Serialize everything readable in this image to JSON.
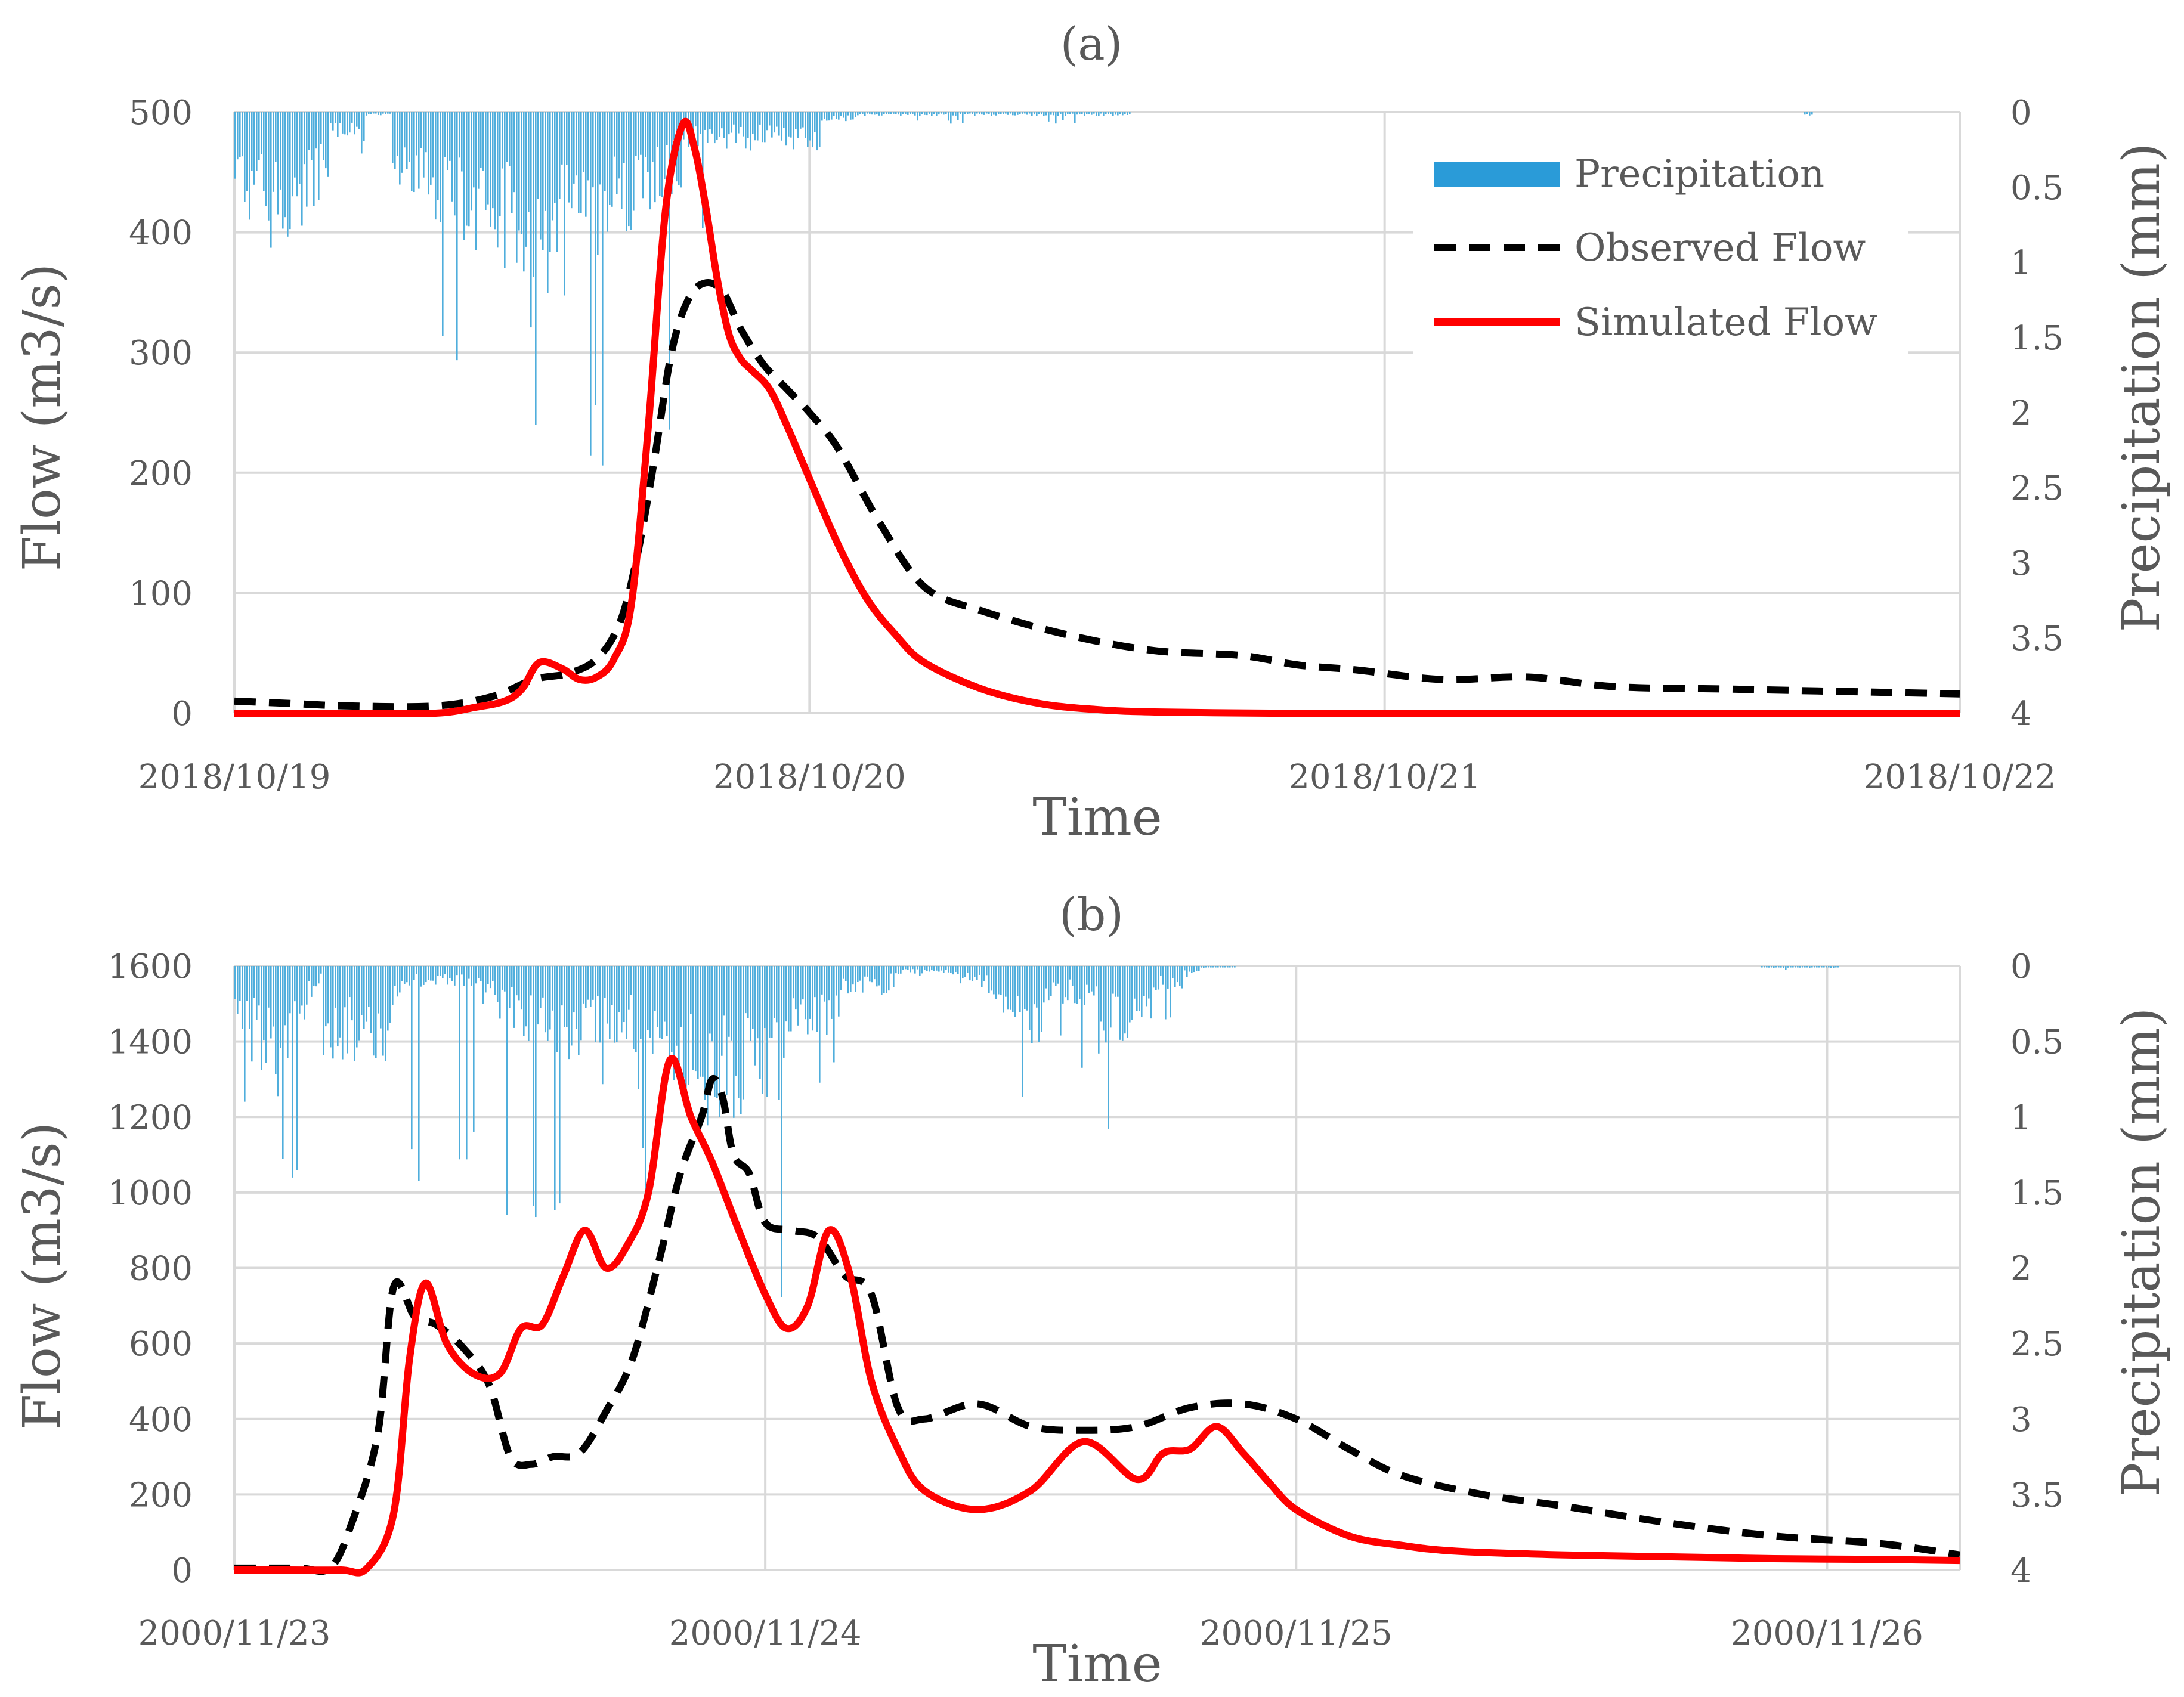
{
  "chart_data": [
    {
      "type": "line",
      "panel_label": "(a)",
      "xlabel": "Time",
      "ylabel": "Flow (m3/s)",
      "y2label": "Precipitation (mm)",
      "ylim": [
        0,
        500
      ],
      "yticks": [
        "0",
        "100",
        "200",
        "300",
        "400",
        "500"
      ],
      "y2lim": [
        0,
        4
      ],
      "y2ticks": [
        "0",
        "0.5",
        "1",
        "1.5",
        "2",
        "2.5",
        "3",
        "3.5",
        "4"
      ],
      "y2_inverted": true,
      "xlim_days": [
        0,
        3
      ],
      "xticks": [
        "2018/10/19",
        "2018/10/20",
        "2018/10/21",
        "2018/10/22"
      ],
      "legend": [
        "Precipitation",
        "Observed Flow",
        "Simulated Flow"
      ],
      "legend_position": "top-right",
      "x_unit": "days since 2018/10/19 00:00",
      "series": [
        {
          "name": "Observed Flow",
          "style": "dashed",
          "color": "#000000",
          "x": [
            0,
            0.1,
            0.2,
            0.35,
            0.45,
            0.52,
            0.58,
            0.63,
            0.67,
            0.7,
            0.73,
            0.76,
            0.79,
            0.82,
            0.85,
            0.88,
            0.92,
            0.96,
            1.0,
            1.05,
            1.12,
            1.2,
            1.3,
            1.45,
            1.6,
            1.75,
            1.85,
            1.95,
            2.1,
            2.25,
            2.4,
            2.6,
            2.8,
            3.0
          ],
          "values": [
            10,
            8,
            6,
            6,
            14,
            28,
            33,
            45,
            75,
            130,
            210,
            300,
            345,
            358,
            350,
            320,
            290,
            270,
            250,
            220,
            160,
            105,
            85,
            65,
            52,
            48,
            40,
            36,
            28,
            30,
            22,
            20,
            18,
            16
          ]
        },
        {
          "name": "Simulated Flow",
          "style": "solid",
          "color": "#ff0000",
          "x": [
            0,
            0.1,
            0.2,
            0.35,
            0.42,
            0.47,
            0.5,
            0.53,
            0.57,
            0.6,
            0.63,
            0.66,
            0.69,
            0.72,
            0.75,
            0.78,
            0.8,
            0.82,
            0.84,
            0.86,
            0.88,
            0.9,
            0.93,
            0.96,
            1.0,
            1.05,
            1.1,
            1.15,
            1.2,
            1.3,
            1.4,
            1.5,
            1.6,
            1.8,
            2.0,
            2.5,
            3.0
          ],
          "values": [
            0,
            0,
            0,
            0,
            5,
            10,
            20,
            42,
            37,
            28,
            30,
            45,
            90,
            240,
            420,
            490,
            470,
            420,
            360,
            315,
            295,
            285,
            270,
            240,
            195,
            140,
            95,
            65,
            42,
            20,
            8,
            3,
            1,
            0,
            0,
            0,
            0
          ]
        }
      ]
    },
    {
      "type": "line",
      "panel_label": "(b)",
      "xlabel": "Time",
      "ylabel": "Flow (m3/s)",
      "y2label": "Precipitation (mm)",
      "ylim": [
        0,
        1600
      ],
      "yticks": [
        "0",
        "200",
        "400",
        "600",
        "800",
        "1000",
        "1200",
        "1400",
        "1600"
      ],
      "y2lim": [
        0,
        4
      ],
      "y2ticks": [
        "0",
        "0.5",
        "1",
        "1.5",
        "2",
        "2.5",
        "3",
        "3.5",
        "4"
      ],
      "y2_inverted": true,
      "xlim_days": [
        0,
        3.25
      ],
      "xticks": [
        "2000/11/23",
        "2000/11/24",
        "2000/11/25",
        "2000/11/26"
      ],
      "x_unit": "days since 2000/11/23 00:00",
      "series": [
        {
          "name": "Observed Flow",
          "style": "dashed",
          "color": "#000000",
          "x": [
            0,
            0.12,
            0.18,
            0.22,
            0.27,
            0.3,
            0.34,
            0.38,
            0.43,
            0.48,
            0.52,
            0.56,
            0.6,
            0.65,
            0.7,
            0.75,
            0.8,
            0.84,
            0.88,
            0.9,
            0.92,
            0.94,
            0.97,
            1.0,
            1.05,
            1.1,
            1.15,
            1.2,
            1.25,
            1.3,
            1.4,
            1.5,
            1.6,
            1.7,
            1.8,
            1.9,
            2.0,
            2.1,
            2.2,
            2.35,
            2.5,
            2.7,
            2.9,
            3.1,
            3.25
          ],
          "values": [
            5,
            5,
            5,
            120,
            360,
            750,
            670,
            650,
            590,
            490,
            300,
            280,
            300,
            310,
            420,
            560,
            820,
            1050,
            1200,
            1300,
            1250,
            1100,
            1050,
            920,
            900,
            880,
            780,
            730,
            430,
            400,
            440,
            380,
            370,
            380,
            430,
            440,
            400,
            320,
            250,
            200,
            170,
            125,
            90,
            70,
            40
          ]
        },
        {
          "name": "Simulated Flow",
          "style": "solid",
          "color": "#ff0000",
          "x": [
            0,
            0.1,
            0.2,
            0.25,
            0.3,
            0.33,
            0.36,
            0.4,
            0.45,
            0.5,
            0.54,
            0.58,
            0.62,
            0.66,
            0.7,
            0.74,
            0.78,
            0.82,
            0.86,
            0.9,
            0.95,
            1.0,
            1.04,
            1.08,
            1.12,
            1.16,
            1.2,
            1.25,
            1.3,
            1.4,
            1.5,
            1.6,
            1.7,
            1.75,
            1.8,
            1.85,
            1.9,
            1.95,
            2.0,
            2.1,
            2.2,
            2.3,
            2.5,
            2.7,
            2.9,
            3.1,
            3.25
          ],
          "values": [
            0,
            0,
            0,
            5,
            150,
            560,
            760,
            600,
            520,
            520,
            640,
            650,
            780,
            900,
            800,
            860,
            1000,
            1350,
            1200,
            1080,
            900,
            730,
            640,
            700,
            900,
            780,
            500,
            320,
            210,
            160,
            210,
            340,
            240,
            310,
            320,
            380,
            310,
            230,
            160,
            90,
            65,
            50,
            40,
            35,
            30,
            28,
            25
          ]
        }
      ]
    }
  ],
  "colors": {
    "precipitation": "#4faedc",
    "observed": "#000000",
    "simulated": "#ff0000",
    "grid": "#d9d9d9",
    "text": "#595959"
  }
}
